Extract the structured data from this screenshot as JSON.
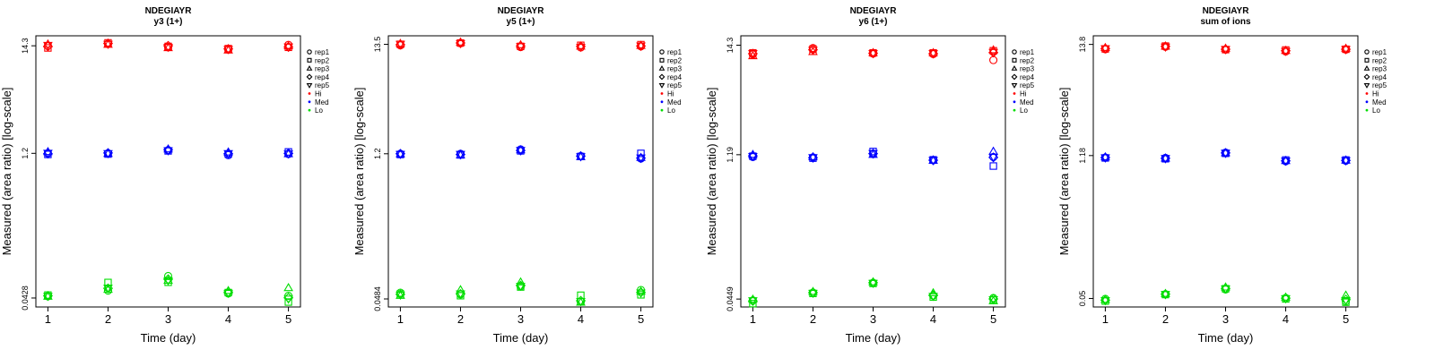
{
  "colors": {
    "Hi": "#ff0000",
    "Med": "#0000ff",
    "Lo": "#00dd00",
    "axis": "#000000"
  },
  "legend": {
    "reps": [
      {
        "label": "rep1",
        "symbol": "circle"
      },
      {
        "label": "rep2",
        "symbol": "square"
      },
      {
        "label": "rep3",
        "symbol": "triangle-up"
      },
      {
        "label": "rep4",
        "symbol": "diamond"
      },
      {
        "label": "rep5",
        "symbol": "triangle-down"
      }
    ],
    "levels": [
      {
        "label": "Hi",
        "color": "#ff0000"
      },
      {
        "label": "Med",
        "color": "#0000ff"
      },
      {
        "label": "Lo",
        "color": "#00dd00"
      }
    ]
  },
  "chart_data": [
    {
      "type": "scatter",
      "title": "NDEGIAYR",
      "subtitle": "y3 (1+)",
      "xlabel": "Time (day)",
      "ylabel": "Measured (area ratio) [log-scale]",
      "log_y": true,
      "x_ticks": [
        1,
        2,
        3,
        4,
        5
      ],
      "y_ticks": [
        0.0428,
        1.2,
        14.3
      ],
      "y_tick_labels": [
        "0.0428",
        "1.2",
        "14.3"
      ],
      "xlim": [
        0.8,
        5.2
      ],
      "ylim": [
        0.0348,
        18.0
      ],
      "grid": false,
      "legend_position": "right",
      "series": [
        {
          "level": "Hi",
          "values": [
            [
              14.3,
              13.6,
              14.8,
              14.1,
              14.5
            ],
            [
              14.9,
              15.3,
              14.7,
              15.1,
              14.9
            ],
            [
              13.8,
              14.1,
              13.6,
              14.3,
              13.9
            ],
            [
              13.1,
              13.4,
              12.9,
              13.3,
              13.2
            ],
            [
              14.6,
              13.8,
              14.2,
              13.9,
              14.0
            ]
          ]
        },
        {
          "level": "Med",
          "values": [
            [
              1.2,
              1.17,
              1.24,
              1.19,
              1.21
            ],
            [
              1.2,
              1.18,
              1.19,
              1.21,
              1.2
            ],
            [
              1.29,
              1.27,
              1.32,
              1.3,
              1.28
            ],
            [
              1.15,
              1.18,
              1.23,
              1.19,
              1.2
            ],
            [
              1.18,
              1.24,
              1.18,
              1.2,
              1.19
            ]
          ]
        },
        {
          "level": "Lo",
          "values": [
            [
              0.0445,
              0.0458,
              0.0443,
              0.045,
              0.0447
            ],
            [
              0.0508,
              0.0612,
              0.052,
              0.0535,
              0.054
            ],
            [
              0.071,
              0.0615,
              0.064,
              0.066,
              0.064
            ],
            [
              0.0475,
              0.0485,
              0.0505,
              0.049,
              0.048
            ],
            [
              0.045,
              0.039,
              0.054,
              0.043,
              0.042
            ]
          ]
        }
      ]
    },
    {
      "type": "scatter",
      "title": "NDEGIAYR",
      "subtitle": "y5 (1+)",
      "xlabel": "Time (day)",
      "ylabel": "Measured (area ratio) [log-scale]",
      "log_y": true,
      "x_ticks": [
        1,
        2,
        3,
        4,
        5
      ],
      "y_ticks": [
        0.0484,
        1.2,
        13.5
      ],
      "y_tick_labels": [
        "0.0484",
        "1.2",
        "13.5"
      ],
      "xlim": [
        0.8,
        5.2
      ],
      "ylim": [
        0.0405,
        16.3
      ],
      "grid": false,
      "legend_position": "right",
      "series": [
        {
          "level": "Hi",
          "values": [
            [
              13.2,
              13.5,
              13.7,
              13.4,
              13.6
            ],
            [
              13.8,
              13.9,
              14.1,
              13.9,
              13.8
            ],
            [
              12.7,
              12.9,
              13.3,
              13.0,
              12.9
            ],
            [
              12.6,
              13.2,
              12.9,
              12.9,
              12.7
            ],
            [
              12.9,
              13.4,
              13.1,
              13.0,
              13.1
            ]
          ]
        },
        {
          "level": "Med",
          "values": [
            [
              1.2,
              1.18,
              1.19,
              1.2,
              1.19
            ],
            [
              1.2,
              1.17,
              1.16,
              1.18,
              1.19
            ],
            [
              1.32,
              1.28,
              1.3,
              1.29,
              1.3
            ],
            [
              1.14,
              1.13,
              1.12,
              1.14,
              1.13
            ],
            [
              1.08,
              1.21,
              1.1,
              1.09,
              1.1
            ]
          ]
        },
        {
          "level": "Lo",
          "values": [
            [
              0.0555,
              0.054,
              0.052,
              0.0535,
              0.053
            ],
            [
              0.0535,
              0.052,
              0.059,
              0.054,
              0.0545
            ],
            [
              0.064,
              0.063,
              0.07,
              0.065,
              0.0645
            ],
            [
              0.0455,
              0.0525,
              0.0448,
              0.0465,
              0.046
            ],
            [
              0.059,
              0.053,
              0.057,
              0.056,
              0.0555
            ]
          ]
        }
      ]
    },
    {
      "type": "scatter",
      "title": "NDEGIAYR",
      "subtitle": "y6 (1+)",
      "xlabel": "Time (day)",
      "ylabel": "Measured (area ratio) [log-scale]",
      "log_y": true,
      "x_ticks": [
        1,
        2,
        3,
        4,
        5
      ],
      "y_ticks": [
        0.0449,
        1.19,
        14.3
      ],
      "y_tick_labels": [
        "0.0449",
        "1.19",
        "14.3"
      ],
      "xlim": [
        0.8,
        5.2
      ],
      "ylim": [
        0.0375,
        17.7
      ],
      "grid": false,
      "legend_position": "right",
      "series": [
        {
          "level": "Hi",
          "values": [
            [
              11.6,
              12.0,
              11.2,
              11.8,
              11.9
            ],
            [
              13.4,
              13.1,
              12.3,
              12.9,
              12.8
            ],
            [
              11.8,
              12.0,
              12.0,
              11.9,
              11.9
            ],
            [
              11.7,
              12.0,
              12.0,
              11.8,
              11.9
            ],
            [
              10.2,
              12.6,
              12.8,
              12.1,
              12.2
            ]
          ]
        },
        {
          "level": "Med",
          "values": [
            [
              1.13,
              1.15,
              1.19,
              1.16,
              1.15
            ],
            [
              1.12,
              1.1,
              1.13,
              1.11,
              1.12
            ],
            [
              1.21,
              1.28,
              1.19,
              1.22,
              1.23
            ],
            [
              1.05,
              1.06,
              1.04,
              1.05,
              1.05
            ],
            [
              1.13,
              0.92,
              1.28,
              1.12,
              1.13
            ]
          ]
        },
        {
          "level": "Lo",
          "values": [
            [
              0.0435,
              0.0405,
              0.0445,
              0.043,
              0.0435
            ],
            [
              0.052,
              0.051,
              0.053,
              0.052,
              0.0515
            ],
            [
              0.065,
              0.064,
              0.066,
              0.065,
              0.0645
            ],
            [
              0.0485,
              0.047,
              0.0515,
              0.049,
              0.048
            ],
            [
              0.046,
              0.044,
              0.043,
              0.045,
              0.0445
            ]
          ]
        }
      ]
    },
    {
      "type": "scatter",
      "title": "NDEGIAYR",
      "subtitle": "sum of ions",
      "xlabel": "Time (day)",
      "ylabel": "Measured (area ratio) [log-scale]",
      "log_y": true,
      "x_ticks": [
        1,
        2,
        3,
        4,
        5
      ],
      "y_ticks": [
        0.05,
        1.18,
        13.8
      ],
      "y_tick_labels": [
        "0.05",
        "1.18",
        "13.8"
      ],
      "xlim": [
        0.8,
        5.2
      ],
      "ylim": [
        0.0414,
        16.7
      ],
      "grid": false,
      "legend_position": "right",
      "series": [
        {
          "level": "Hi",
          "values": [
            [
              12.4,
              12.5,
              12.8,
              12.6,
              12.6
            ],
            [
              13.1,
              13.3,
              13.2,
              13.2,
              13.1
            ],
            [
              12.3,
              12.3,
              12.6,
              12.4,
              12.4
            ],
            [
              11.8,
              12.2,
              12.0,
              12.0,
              11.9
            ],
            [
              12.3,
              12.4,
              12.6,
              12.4,
              12.4
            ]
          ]
        },
        {
          "level": "Med",
          "values": [
            [
              1.13,
              1.12,
              1.14,
              1.13,
              1.13
            ],
            [
              1.12,
              1.1,
              1.11,
              1.11,
              1.11
            ],
            [
              1.26,
              1.24,
              1.25,
              1.25,
              1.25
            ],
            [
              1.04,
              1.07,
              1.05,
              1.05,
              1.05
            ],
            [
              1.05,
              1.07,
              1.06,
              1.06,
              1.06
            ]
          ]
        },
        {
          "level": "Lo",
          "values": [
            [
              0.0495,
              0.0472,
              0.0485,
              0.0482,
              0.048
            ],
            [
              0.055,
              0.0545,
              0.0555,
              0.055,
              0.0548
            ],
            [
              0.061,
              0.062,
              0.064,
              0.0625,
              0.062
            ],
            [
              0.0505,
              0.0495,
              0.0512,
              0.0503,
              0.05
            ],
            [
              0.047,
              0.046,
              0.0535,
              0.0488,
              0.048
            ]
          ]
        }
      ]
    }
  ]
}
